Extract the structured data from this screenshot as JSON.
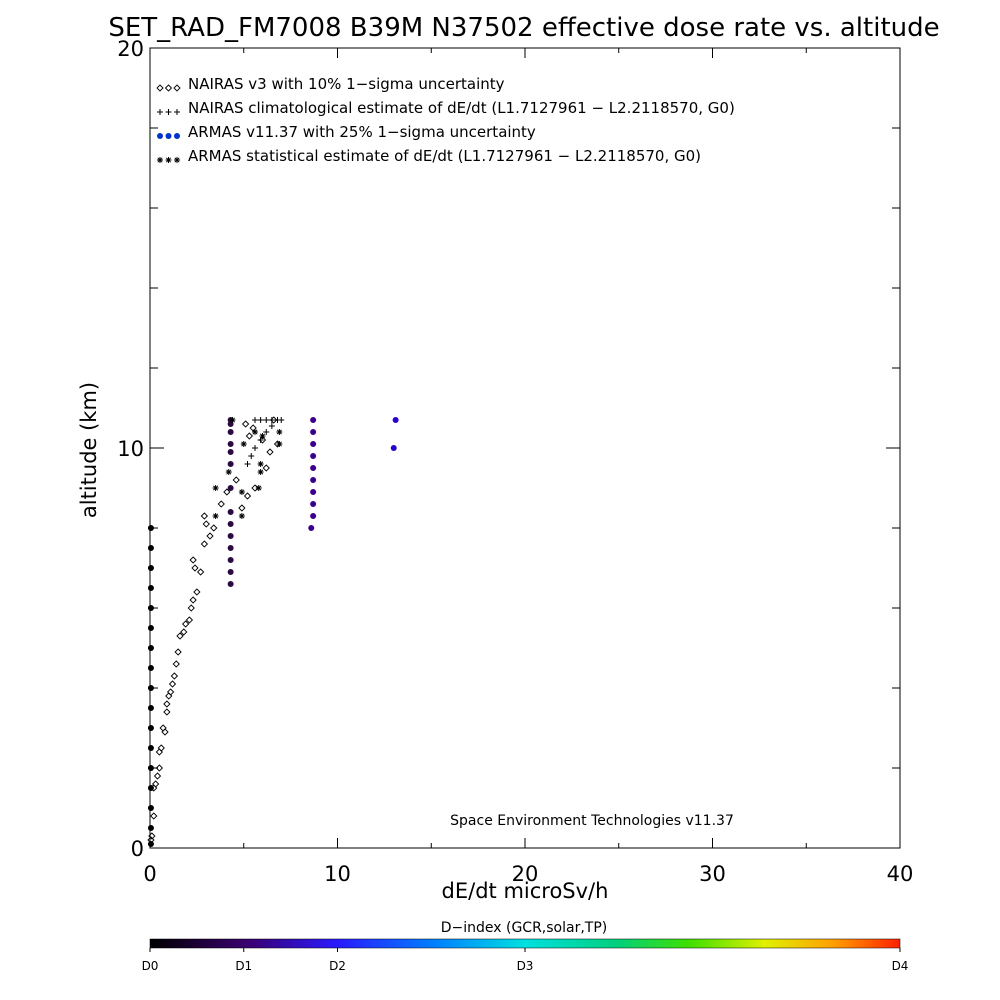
{
  "chart_data": {
    "type": "scatter",
    "title": "SET_RAD_FM7008  B39M N37502 effective dose rate vs. altitude",
    "xlabel": "dE/dt microSv/h",
    "ylabel": "altitude (km)",
    "xlim": [
      0,
      40
    ],
    "ylim": [
      0,
      20
    ],
    "x_ticks": [
      "0",
      "10",
      "20",
      "30",
      "40"
    ],
    "y_ticks": [
      "0",
      "10",
      "20"
    ],
    "grid": false,
    "legend_position": "top-left",
    "annotation": "Space Environment Technologies v11.37",
    "colorbar": {
      "title": "D−index (GCR,solar,TP)",
      "labels": [
        "D0",
        "D1",
        "D2",
        "D3",
        "D4"
      ]
    },
    "series": [
      {
        "name": "NAIRAS v3 with 10% 1−sigma uncertainty",
        "marker": "diamond",
        "color": "#000000",
        "points": [
          [
            0.05,
            0.2
          ],
          [
            0.1,
            0.3
          ],
          [
            0.2,
            0.8
          ],
          [
            0.2,
            1.5
          ],
          [
            0.3,
            1.6
          ],
          [
            0.4,
            1.8
          ],
          [
            0.5,
            2.0
          ],
          [
            0.5,
            2.4
          ],
          [
            0.6,
            2.5
          ],
          [
            0.7,
            3.0
          ],
          [
            0.8,
            2.9
          ],
          [
            0.9,
            3.4
          ],
          [
            0.9,
            3.6
          ],
          [
            1.0,
            3.8
          ],
          [
            1.1,
            3.9
          ],
          [
            1.2,
            4.1
          ],
          [
            1.3,
            4.3
          ],
          [
            1.4,
            4.6
          ],
          [
            1.5,
            4.9
          ],
          [
            1.6,
            5.3
          ],
          [
            1.8,
            5.4
          ],
          [
            1.9,
            5.6
          ],
          [
            2.1,
            5.7
          ],
          [
            2.2,
            6.0
          ],
          [
            2.3,
            6.2
          ],
          [
            2.5,
            6.4
          ],
          [
            2.7,
            6.9
          ],
          [
            2.4,
            7.0
          ],
          [
            2.3,
            7.2
          ],
          [
            2.9,
            7.6
          ],
          [
            3.2,
            7.8
          ],
          [
            3.4,
            8.0
          ],
          [
            3.0,
            8.1
          ],
          [
            2.9,
            8.3
          ],
          [
            3.8,
            8.6
          ],
          [
            4.1,
            8.9
          ],
          [
            4.6,
            9.2
          ],
          [
            4.9,
            8.5
          ],
          [
            5.2,
            8.8
          ],
          [
            5.6,
            9.0
          ],
          [
            6.2,
            9.5
          ],
          [
            6.4,
            9.9
          ],
          [
            6.8,
            10.1
          ],
          [
            6.0,
            10.2
          ],
          [
            5.3,
            10.3
          ],
          [
            5.5,
            10.5
          ],
          [
            5.1,
            10.6
          ],
          [
            6.6,
            10.7
          ]
        ]
      },
      {
        "name": "NAIRAS climatological estimate of dE/dt (L1.7127961 − L2.2118570, G0)",
        "marker": "plus",
        "color": "#000000",
        "points": [
          [
            5.2,
            9.6
          ],
          [
            5.4,
            9.8
          ],
          [
            5.6,
            10.0
          ],
          [
            5.9,
            10.2
          ],
          [
            6.2,
            10.4
          ],
          [
            6.5,
            10.55
          ],
          [
            5.6,
            10.7
          ],
          [
            5.9,
            10.7
          ],
          [
            6.2,
            10.7
          ],
          [
            6.5,
            10.7
          ],
          [
            6.8,
            10.7
          ],
          [
            7.0,
            10.7
          ]
        ]
      },
      {
        "name": "ARMAS v11.37 with 25% 1−sigma uncertainty",
        "marker": "dot",
        "color": "#0033cc",
        "points": [
          [
            0.05,
            0.1
          ],
          [
            0.05,
            0.5
          ],
          [
            0.05,
            1.0
          ],
          [
            0.05,
            1.5
          ],
          [
            0.05,
            2.0
          ],
          [
            0.05,
            2.5
          ],
          [
            0.05,
            3.0
          ],
          [
            0.05,
            3.5
          ],
          [
            0.05,
            4.0
          ],
          [
            0.05,
            4.5
          ],
          [
            0.05,
            5.0
          ],
          [
            0.05,
            5.5
          ],
          [
            0.05,
            6.0
          ],
          [
            0.05,
            6.5
          ],
          [
            0.05,
            7.0
          ],
          [
            0.05,
            7.5
          ],
          [
            0.05,
            8.0
          ],
          [
            4.3,
            6.6
          ],
          [
            4.3,
            6.9
          ],
          [
            4.3,
            7.2
          ],
          [
            4.3,
            7.5
          ],
          [
            4.3,
            7.8
          ],
          [
            4.3,
            8.1
          ],
          [
            4.3,
            8.4
          ],
          [
            4.3,
            9.0
          ],
          [
            4.3,
            9.6
          ],
          [
            4.3,
            9.9
          ],
          [
            4.3,
            10.1
          ],
          [
            4.3,
            10.4
          ],
          [
            4.3,
            10.6
          ],
          [
            4.3,
            10.7
          ],
          [
            8.6,
            8.0
          ],
          [
            8.7,
            8.3
          ],
          [
            8.7,
            8.6
          ],
          [
            8.7,
            8.9
          ],
          [
            8.7,
            9.2
          ],
          [
            8.7,
            9.5
          ],
          [
            8.7,
            9.8
          ],
          [
            8.7,
            10.1
          ],
          [
            8.7,
            10.4
          ],
          [
            8.7,
            10.7
          ],
          [
            13.0,
            10.0
          ],
          [
            13.1,
            10.7
          ]
        ]
      },
      {
        "name": "ARMAS statistical estimate of dE/dt (L1.7127961 − L2.2118570, G0)",
        "marker": "asterisk",
        "color": "#000000",
        "points": [
          [
            3.5,
            8.3
          ],
          [
            4.9,
            8.3
          ],
          [
            3.5,
            9.0
          ],
          [
            4.9,
            8.9
          ],
          [
            4.2,
            9.4
          ],
          [
            5.8,
            9.0
          ],
          [
            5.9,
            9.4
          ],
          [
            5.9,
            9.6
          ],
          [
            6.9,
            10.1
          ],
          [
            6.0,
            10.3
          ],
          [
            6.9,
            10.4
          ],
          [
            5.6,
            10.4
          ],
          [
            5.0,
            10.1
          ],
          [
            4.4,
            10.7
          ]
        ]
      }
    ]
  }
}
